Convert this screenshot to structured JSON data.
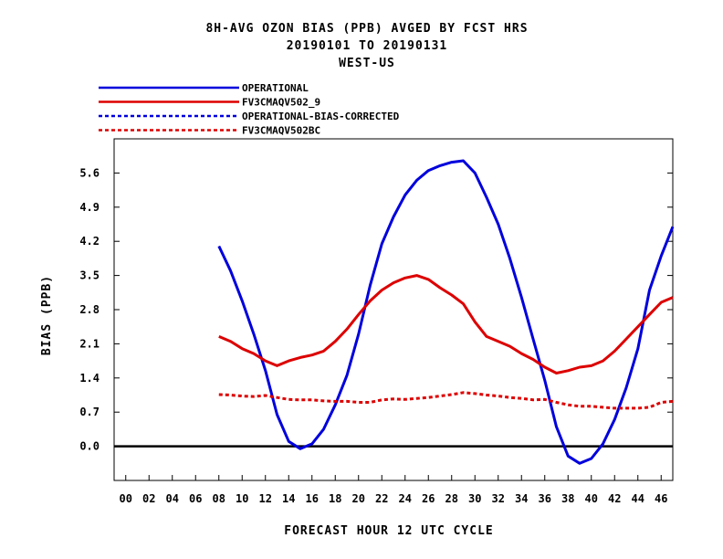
{
  "header": {
    "line1": "8H-AVG OZON BIAS (PPB)  AVGED BY FCST HRS",
    "line2": "20190101 TO 20190131",
    "line3": "WEST-US"
  },
  "chart_data": {
    "type": "line",
    "title": "8H-AVG OZON BIAS (PPB)  AVGED BY FCST HRS",
    "subtitle": "20190101 TO 20190131",
    "region": "WEST-US",
    "xlabel": "FORECAST HOUR  12 UTC CYCLE",
    "ylabel": "BIAS (PPB)",
    "xlim": [
      -1,
      47
    ],
    "ylim": [
      -0.7,
      6.3
    ],
    "x_ticks": [
      "00",
      "02",
      "04",
      "06",
      "08",
      "10",
      "12",
      "14",
      "16",
      "18",
      "20",
      "22",
      "24",
      "26",
      "28",
      "30",
      "32",
      "34",
      "36",
      "38",
      "40",
      "42",
      "44",
      "46"
    ],
    "y_ticks": [
      "0.0",
      "0.7",
      "1.4",
      "2.1",
      "2.8",
      "3.5",
      "4.2",
      "4.9",
      "5.6"
    ],
    "zero_line": true,
    "grid": false,
    "legend_position": "top-left, above plot",
    "series": [
      {
        "name": "OPERATIONAL",
        "color": "#0000dd",
        "style": "solid",
        "x": [
          8,
          9,
          10,
          11,
          12,
          13,
          14,
          15,
          16,
          17,
          18,
          19,
          20,
          21,
          22,
          23,
          24,
          25,
          26,
          27,
          28,
          29,
          30,
          31,
          32,
          33,
          34,
          35,
          36,
          37,
          38,
          39,
          40,
          41,
          42,
          43,
          44,
          45,
          46,
          47
        ],
        "y": [
          4.1,
          3.6,
          2.98,
          2.3,
          1.55,
          0.65,
          0.1,
          -0.05,
          0.05,
          0.35,
          0.85,
          1.45,
          2.3,
          3.3,
          4.15,
          4.7,
          5.15,
          5.45,
          5.65,
          5.75,
          5.82,
          5.85,
          5.6,
          5.1,
          4.55,
          3.85,
          3.05,
          2.2,
          1.35,
          0.4,
          -0.2,
          -0.35,
          -0.25,
          0.05,
          0.55,
          1.2,
          2.0,
          3.2,
          3.9,
          4.5
        ]
      },
      {
        "name": "FV3CMAQV502_9",
        "color": "#dd0000",
        "style": "solid",
        "x": [
          8,
          9,
          10,
          11,
          12,
          13,
          14,
          15,
          16,
          17,
          18,
          19,
          20,
          21,
          22,
          23,
          24,
          25,
          26,
          27,
          28,
          29,
          30,
          31,
          32,
          33,
          34,
          35,
          36,
          37,
          38,
          39,
          40,
          41,
          42,
          43,
          44,
          45,
          46,
          47
        ],
        "y": [
          2.25,
          2.15,
          2.0,
          1.9,
          1.75,
          1.65,
          1.75,
          1.82,
          1.87,
          1.95,
          2.15,
          2.4,
          2.7,
          2.98,
          3.2,
          3.35,
          3.45,
          3.5,
          3.42,
          3.25,
          3.1,
          2.92,
          2.55,
          2.25,
          2.15,
          2.05,
          1.9,
          1.78,
          1.62,
          1.5,
          1.55,
          1.62,
          1.65,
          1.75,
          1.95,
          2.2,
          2.45,
          2.7,
          2.95,
          3.05
        ]
      },
      {
        "name": "OPERATIONAL-BIAS-CORRECTED",
        "color": "#0000dd",
        "style": "dashed",
        "x": [],
        "y": []
      },
      {
        "name": "FV3CMAQV502BC",
        "color": "#dd0000",
        "style": "dashed",
        "x": [
          8,
          9,
          10,
          11,
          12,
          13,
          14,
          15,
          16,
          17,
          18,
          19,
          20,
          21,
          22,
          23,
          24,
          25,
          26,
          27,
          28,
          29,
          30,
          31,
          32,
          33,
          34,
          35,
          36,
          37,
          38,
          39,
          40,
          41,
          42,
          43,
          44,
          45,
          46,
          47
        ],
        "y": [
          1.06,
          1.05,
          1.03,
          1.02,
          1.04,
          1.0,
          0.96,
          0.95,
          0.95,
          0.93,
          0.92,
          0.92,
          0.9,
          0.9,
          0.95,
          0.97,
          0.96,
          0.98,
          1.0,
          1.03,
          1.06,
          1.1,
          1.08,
          1.05,
          1.03,
          1.0,
          0.98,
          0.95,
          0.96,
          0.9,
          0.85,
          0.82,
          0.82,
          0.8,
          0.78,
          0.78,
          0.78,
          0.8,
          0.9,
          0.92
        ]
      }
    ]
  }
}
